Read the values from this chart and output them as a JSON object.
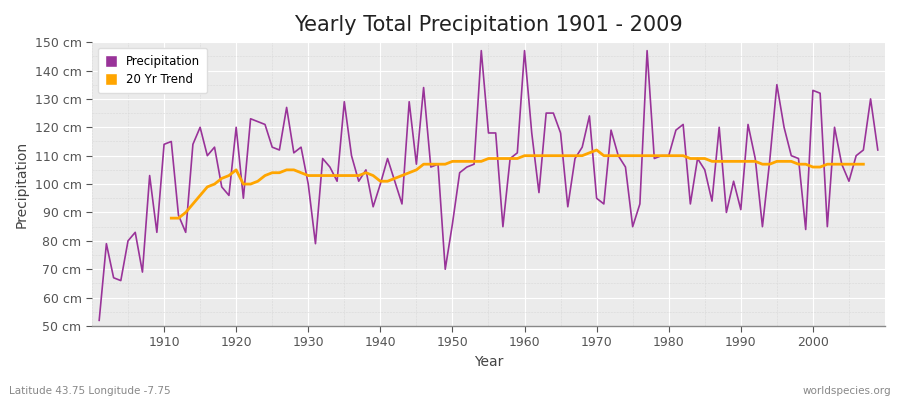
{
  "title": "Yearly Total Precipitation 1901 - 2009",
  "xlabel": "Year",
  "ylabel": "Precipitation",
  "lat_lon_label": "Latitude 43.75 Longitude -7.75",
  "watermark": "worldspecies.org",
  "years": [
    1901,
    1902,
    1903,
    1904,
    1905,
    1906,
    1907,
    1908,
    1909,
    1910,
    1911,
    1912,
    1913,
    1914,
    1915,
    1916,
    1917,
    1918,
    1919,
    1920,
    1921,
    1922,
    1923,
    1924,
    1925,
    1926,
    1927,
    1928,
    1929,
    1930,
    1931,
    1932,
    1933,
    1934,
    1935,
    1936,
    1937,
    1938,
    1939,
    1940,
    1941,
    1942,
    1943,
    1944,
    1945,
    1946,
    1947,
    1948,
    1949,
    1950,
    1951,
    1952,
    1953,
    1954,
    1955,
    1956,
    1957,
    1958,
    1959,
    1960,
    1961,
    1962,
    1963,
    1964,
    1965,
    1966,
    1967,
    1968,
    1969,
    1970,
    1971,
    1972,
    1973,
    1974,
    1975,
    1976,
    1977,
    1978,
    1979,
    1980,
    1981,
    1982,
    1983,
    1984,
    1985,
    1986,
    1987,
    1988,
    1989,
    1990,
    1991,
    1992,
    1993,
    1994,
    1995,
    1996,
    1997,
    1998,
    1999,
    2000,
    2001,
    2002,
    2003,
    2004,
    2005,
    2006,
    2007,
    2008,
    2009
  ],
  "precip": [
    52,
    79,
    67,
    66,
    80,
    83,
    69,
    103,
    83,
    114,
    115,
    89,
    83,
    114,
    120,
    110,
    113,
    99,
    96,
    120,
    95,
    123,
    122,
    121,
    113,
    112,
    127,
    111,
    113,
    100,
    79,
    109,
    106,
    101,
    129,
    110,
    101,
    105,
    92,
    100,
    109,
    101,
    93,
    129,
    107,
    134,
    106,
    107,
    70,
    86,
    104,
    106,
    107,
    147,
    118,
    118,
    85,
    109,
    111,
    147,
    118,
    97,
    125,
    125,
    118,
    92,
    109,
    113,
    124,
    95,
    93,
    119,
    110,
    106,
    85,
    93,
    147,
    109,
    110,
    110,
    119,
    121,
    93,
    109,
    105,
    94,
    120,
    90,
    101,
    91,
    121,
    109,
    85,
    108,
    135,
    120,
    110,
    109,
    84,
    133,
    132,
    85,
    120,
    107,
    101,
    110,
    112,
    130,
    112
  ],
  "trend": [
    null,
    null,
    null,
    null,
    null,
    null,
    null,
    null,
    null,
    null,
    88,
    88,
    90,
    93,
    96,
    99,
    100,
    102,
    103,
    105,
    100,
    100,
    101,
    103,
    104,
    104,
    105,
    105,
    104,
    103,
    103,
    103,
    103,
    103,
    103,
    103,
    103,
    104,
    103,
    101,
    101,
    102,
    103,
    104,
    105,
    107,
    107,
    107,
    107,
    108,
    108,
    108,
    108,
    108,
    109,
    109,
    109,
    109,
    109,
    110,
    110,
    110,
    110,
    110,
    110,
    110,
    110,
    110,
    111,
    112,
    110,
    110,
    110,
    110,
    110,
    110,
    110,
    110,
    110,
    110,
    110,
    110,
    109,
    109,
    109,
    108,
    108,
    108,
    108,
    108,
    108,
    108,
    107,
    107,
    108,
    108,
    108,
    107,
    107,
    106,
    106,
    107,
    107,
    107,
    107,
    107,
    107,
    null,
    null
  ],
  "precip_color": "#993399",
  "trend_color": "#FFA500",
  "fig_bg_color": "#FFFFFF",
  "plot_bg_color": "#EBEBEB",
  "grid_color": "#FFFFFF",
  "grid_color_minor": "#D8D8D8",
  "ylim_min": 50,
  "ylim_max": 150,
  "ytick_step": 10,
  "title_fontsize": 15,
  "axis_label_fontsize": 10,
  "tick_fontsize": 9,
  "bottom_text_color": "#888888"
}
